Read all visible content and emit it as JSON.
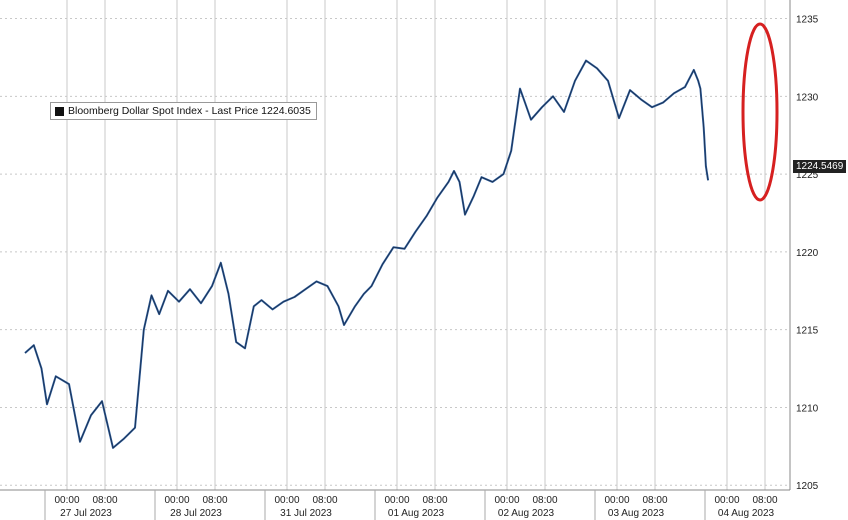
{
  "chart_data": {
    "type": "line",
    "legend": "Bloomberg Dollar Spot Index - Last Price 1224.6035",
    "last_value_label": "1224.5469",
    "ylim": [
      1204.5,
      1236
    ],
    "y_ticks": [
      1205,
      1210,
      1215,
      1220,
      1225,
      1230,
      1235
    ],
    "x_ticks": [
      {
        "date": "27 Jul 2023"
      },
      {
        "date": "28 Jul 2023"
      },
      {
        "date": "31 Jul 2023"
      },
      {
        "date": "01 Aug 2023"
      },
      {
        "date": "02 Aug 2023"
      },
      {
        "date": "03 Aug 2023"
      },
      {
        "date": "04 Aug 2023"
      }
    ],
    "x_sub_labels": [
      "00:00",
      "08:00"
    ],
    "series": [
      {
        "color": "#2f5f9e",
        "points": [
          [
            0.0,
            1213.5
          ],
          [
            0.08,
            1214.0
          ],
          [
            0.15,
            1212.5
          ],
          [
            0.2,
            1210.2
          ],
          [
            0.28,
            1212.0
          ],
          [
            0.4,
            1211.5
          ],
          [
            0.5,
            1207.8
          ],
          [
            0.6,
            1209.5
          ],
          [
            0.7,
            1210.4
          ],
          [
            0.8,
            1207.4
          ],
          [
            0.9,
            1208.0
          ],
          [
            1.0,
            1208.7
          ],
          [
            1.08,
            1215.0
          ],
          [
            1.15,
            1217.2
          ],
          [
            1.22,
            1216.0
          ],
          [
            1.3,
            1217.5
          ],
          [
            1.4,
            1216.8
          ],
          [
            1.5,
            1217.6
          ],
          [
            1.6,
            1216.7
          ],
          [
            1.7,
            1217.8
          ],
          [
            1.78,
            1219.3
          ],
          [
            1.85,
            1217.3
          ],
          [
            1.92,
            1214.2
          ],
          [
            2.0,
            1213.8
          ],
          [
            2.08,
            1216.5
          ],
          [
            2.15,
            1216.9
          ],
          [
            2.25,
            1216.3
          ],
          [
            2.35,
            1216.8
          ],
          [
            2.45,
            1217.1
          ],
          [
            2.55,
            1217.6
          ],
          [
            2.65,
            1218.1
          ],
          [
            2.75,
            1217.8
          ],
          [
            2.85,
            1216.5
          ],
          [
            2.9,
            1215.3
          ],
          [
            3.0,
            1216.5
          ],
          [
            3.08,
            1217.3
          ],
          [
            3.15,
            1217.8
          ],
          [
            3.25,
            1219.2
          ],
          [
            3.35,
            1220.3
          ],
          [
            3.45,
            1220.2
          ],
          [
            3.55,
            1221.3
          ],
          [
            3.65,
            1222.3
          ],
          [
            3.75,
            1223.5
          ],
          [
            3.85,
            1224.5
          ],
          [
            3.9,
            1225.2
          ],
          [
            3.95,
            1224.5
          ],
          [
            4.0,
            1222.4
          ],
          [
            4.08,
            1223.6
          ],
          [
            4.15,
            1224.8
          ],
          [
            4.25,
            1224.5
          ],
          [
            4.35,
            1225.0
          ],
          [
            4.42,
            1226.5
          ],
          [
            4.5,
            1230.5
          ],
          [
            4.55,
            1229.5
          ],
          [
            4.6,
            1228.5
          ],
          [
            4.7,
            1229.3
          ],
          [
            4.8,
            1230.0
          ],
          [
            4.9,
            1229.0
          ],
          [
            5.0,
            1231.0
          ],
          [
            5.1,
            1232.3
          ],
          [
            5.2,
            1231.8
          ],
          [
            5.3,
            1231.0
          ],
          [
            5.4,
            1228.6
          ],
          [
            5.5,
            1230.4
          ],
          [
            5.6,
            1229.8
          ],
          [
            5.7,
            1229.3
          ],
          [
            5.8,
            1229.6
          ],
          [
            5.9,
            1230.2
          ],
          [
            6.0,
            1230.6
          ],
          [
            6.08,
            1231.7
          ],
          [
            6.12,
            1231.0
          ],
          [
            6.14,
            1230.5
          ],
          [
            6.17,
            1228.0
          ],
          [
            6.19,
            1225.5
          ],
          [
            6.21,
            1224.6
          ]
        ]
      }
    ],
    "annotation": "red ellipse around final drop",
    "grid": true
  }
}
